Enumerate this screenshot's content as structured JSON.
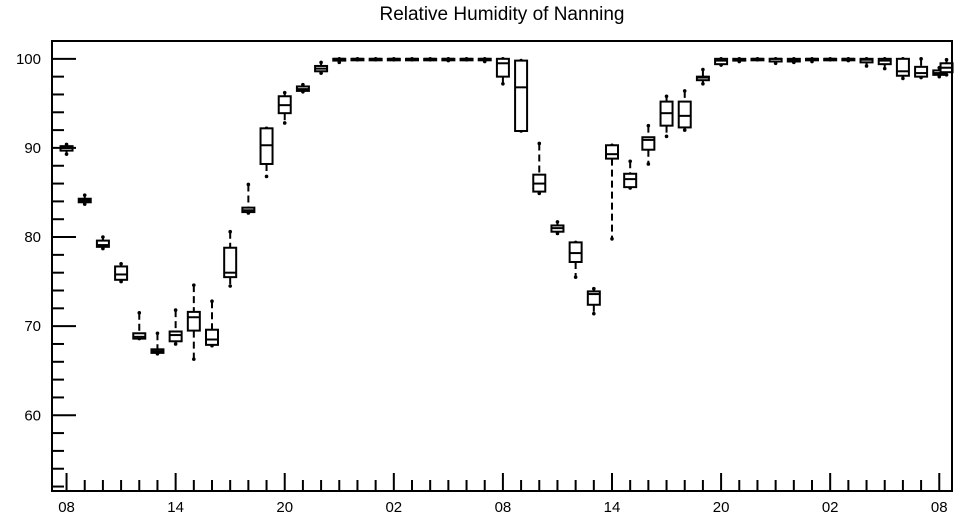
{
  "chart_data": {
    "type": "box",
    "title": "Relative Humidity of Nanning",
    "xlabel": "",
    "ylabel": "",
    "ylim": [
      51.5,
      102
    ],
    "y_ticks": [
      60,
      70,
      80,
      90,
      100
    ],
    "x_ticks": [
      {
        "hour": 0,
        "label": "08"
      },
      {
        "hour": 6,
        "label": "14"
      },
      {
        "hour": 12,
        "label": "20"
      },
      {
        "hour": 18,
        "label": "02"
      },
      {
        "hour": 24,
        "label": "08"
      },
      {
        "hour": 30,
        "label": "14"
      },
      {
        "hour": 36,
        "label": "20"
      },
      {
        "hour": 42,
        "label": "02"
      },
      {
        "hour": 48,
        "label": "08"
      }
    ],
    "x_range": [
      -0.8,
      48.7
    ],
    "grid": false,
    "series": [
      {
        "values": [
          {
            "hour": 0,
            "min": 89.3,
            "q1": 89.7,
            "median": 90.0,
            "q3": 90.2,
            "max": 90.4
          },
          {
            "hour": 1,
            "min": 83.7,
            "q1": 83.9,
            "median": 84.1,
            "q3": 84.3,
            "max": 84.7
          },
          {
            "hour": 2,
            "min": 78.7,
            "q1": 78.9,
            "median": 79.1,
            "q3": 79.6,
            "max": 80.0
          },
          {
            "hour": 3,
            "min": 75.0,
            "q1": 75.2,
            "median": 75.8,
            "q3": 76.7,
            "max": 77.0
          },
          {
            "hour": 4,
            "min": 68.6,
            "q1": 68.6,
            "median": 68.8,
            "q3": 69.2,
            "max": 71.5
          },
          {
            "hour": 5,
            "min": 66.9,
            "q1": 67.0,
            "median": 67.2,
            "q3": 67.4,
            "max": 69.2
          },
          {
            "hour": 6,
            "min": 68.0,
            "q1": 68.3,
            "median": 69.0,
            "q3": 69.4,
            "max": 71.8
          },
          {
            "hour": 7,
            "min": 66.3,
            "q1": 69.5,
            "median": 71.0,
            "q3": 71.6,
            "max": 74.6
          },
          {
            "hour": 8,
            "min": 67.8,
            "q1": 67.9,
            "median": 68.5,
            "q3": 69.6,
            "max": 72.8
          },
          {
            "hour": 9,
            "min": 74.5,
            "q1": 75.5,
            "median": 76.0,
            "q3": 78.8,
            "max": 80.6
          },
          {
            "hour": 10,
            "min": 82.7,
            "q1": 82.8,
            "median": 83.0,
            "q3": 83.3,
            "max": 85.9
          },
          {
            "hour": 11,
            "min": 86.8,
            "q1": 88.2,
            "median": 90.3,
            "q3": 92.2,
            "max": 92.2
          },
          {
            "hour": 12,
            "min": 92.8,
            "q1": 93.9,
            "median": 94.8,
            "q3": 95.8,
            "max": 96.2
          },
          {
            "hour": 13,
            "min": 96.3,
            "q1": 96.4,
            "median": 96.6,
            "q3": 96.9,
            "max": 97.1
          },
          {
            "hour": 14,
            "min": 98.4,
            "q1": 98.6,
            "median": 98.9,
            "q3": 99.2,
            "max": 99.6
          },
          {
            "hour": 15,
            "min": 99.6,
            "q1": 99.8,
            "median": 100.0,
            "q3": 100.0,
            "max": 100.0
          },
          {
            "hour": 16,
            "min": 99.9,
            "q1": 100.0,
            "median": 100.0,
            "q3": 100.0,
            "max": 100.0
          },
          {
            "hour": 17,
            "min": 99.9,
            "q1": 100.0,
            "median": 100.0,
            "q3": 100.0,
            "max": 100.0
          },
          {
            "hour": 18,
            "min": 99.9,
            "q1": 100.0,
            "median": 100.0,
            "q3": 100.0,
            "max": 100.0
          },
          {
            "hour": 19,
            "min": 99.9,
            "q1": 100.0,
            "median": 100.0,
            "q3": 100.0,
            "max": 100.0
          },
          {
            "hour": 20,
            "min": 99.9,
            "q1": 100.0,
            "median": 100.0,
            "q3": 100.0,
            "max": 100.0
          },
          {
            "hour": 21,
            "min": 99.8,
            "q1": 100.0,
            "median": 100.0,
            "q3": 100.0,
            "max": 100.0
          },
          {
            "hour": 22,
            "min": 99.9,
            "q1": 100.0,
            "median": 100.0,
            "q3": 100.0,
            "max": 100.0
          },
          {
            "hour": 23,
            "min": 99.7,
            "q1": 100.0,
            "median": 100.0,
            "q3": 100.0,
            "max": 100.0
          },
          {
            "hour": 24,
            "min": 97.2,
            "q1": 98.0,
            "median": 99.5,
            "q3": 100.0,
            "max": 100.0
          },
          {
            "hour": 25,
            "min": 91.9,
            "q1": 91.9,
            "median": 96.8,
            "q3": 99.8,
            "max": 99.8
          },
          {
            "hour": 26,
            "min": 84.9,
            "q1": 85.1,
            "median": 86.0,
            "q3": 87.0,
            "max": 90.5
          },
          {
            "hour": 27,
            "min": 80.4,
            "q1": 80.6,
            "median": 81.0,
            "q3": 81.3,
            "max": 81.7
          },
          {
            "hour": 28,
            "min": 75.5,
            "q1": 77.2,
            "median": 78.2,
            "q3": 79.4,
            "max": 79.4
          },
          {
            "hour": 29,
            "min": 71.4,
            "q1": 72.4,
            "median": 73.6,
            "q3": 73.9,
            "max": 74.2
          },
          {
            "hour": 30,
            "min": 79.8,
            "q1": 88.8,
            "median": 89.3,
            "q3": 90.3,
            "max": 90.3
          },
          {
            "hour": 31,
            "min": 85.5,
            "q1": 85.6,
            "median": 86.5,
            "q3": 87.1,
            "max": 88.5
          },
          {
            "hour": 32,
            "min": 88.2,
            "q1": 89.8,
            "median": 90.9,
            "q3": 91.2,
            "max": 92.5
          },
          {
            "hour": 33,
            "min": 91.3,
            "q1": 92.5,
            "median": 93.9,
            "q3": 95.2,
            "max": 95.8
          },
          {
            "hour": 34,
            "min": 92.0,
            "q1": 92.3,
            "median": 93.6,
            "q3": 95.2,
            "max": 96.4
          },
          {
            "hour": 35,
            "min": 97.2,
            "q1": 97.6,
            "median": 97.9,
            "q3": 98.0,
            "max": 98.8
          },
          {
            "hour": 36,
            "min": 99.3,
            "q1": 99.4,
            "median": 99.8,
            "q3": 100.0,
            "max": 100.0
          },
          {
            "hour": 37,
            "min": 99.7,
            "q1": 99.8,
            "median": 99.9,
            "q3": 100.0,
            "max": 100.0
          },
          {
            "hour": 38,
            "min": 99.9,
            "q1": 100.0,
            "median": 100.0,
            "q3": 100.0,
            "max": 100.0
          },
          {
            "hour": 39,
            "min": 99.5,
            "q1": 99.7,
            "median": 100.0,
            "q3": 100.0,
            "max": 100.0
          },
          {
            "hour": 40,
            "min": 99.6,
            "q1": 99.7,
            "median": 99.9,
            "q3": 100.0,
            "max": 100.0
          },
          {
            "hour": 41,
            "min": 99.7,
            "q1": 99.9,
            "median": 100.0,
            "q3": 100.0,
            "max": 100.0
          },
          {
            "hour": 42,
            "min": 99.9,
            "q1": 100.0,
            "median": 100.0,
            "q3": 100.0,
            "max": 100.0
          },
          {
            "hour": 43,
            "min": 99.8,
            "q1": 100.0,
            "median": 100.0,
            "q3": 100.0,
            "max": 100.0
          },
          {
            "hour": 44,
            "min": 99.2,
            "q1": 99.6,
            "median": 99.9,
            "q3": 100.0,
            "max": 100.0
          },
          {
            "hour": 45,
            "min": 98.9,
            "q1": 99.4,
            "median": 99.8,
            "q3": 100.0,
            "max": 100.0
          },
          {
            "hour": 46,
            "min": 97.8,
            "q1": 98.1,
            "median": 98.6,
            "q3": 100.0,
            "max": 100.0
          },
          {
            "hour": 47,
            "min": 97.9,
            "q1": 98.0,
            "median": 98.4,
            "q3": 99.1,
            "max": 100.0
          },
          {
            "hour": 48,
            "min": 98.0,
            "q1": 98.2,
            "median": 98.4,
            "q3": 98.7,
            "max": 99.0
          },
          {
            "hour": 48.4,
            "min": 98.2,
            "q1": 98.5,
            "median": 99.0,
            "q3": 99.5,
            "max": 99.9
          }
        ]
      }
    ]
  }
}
